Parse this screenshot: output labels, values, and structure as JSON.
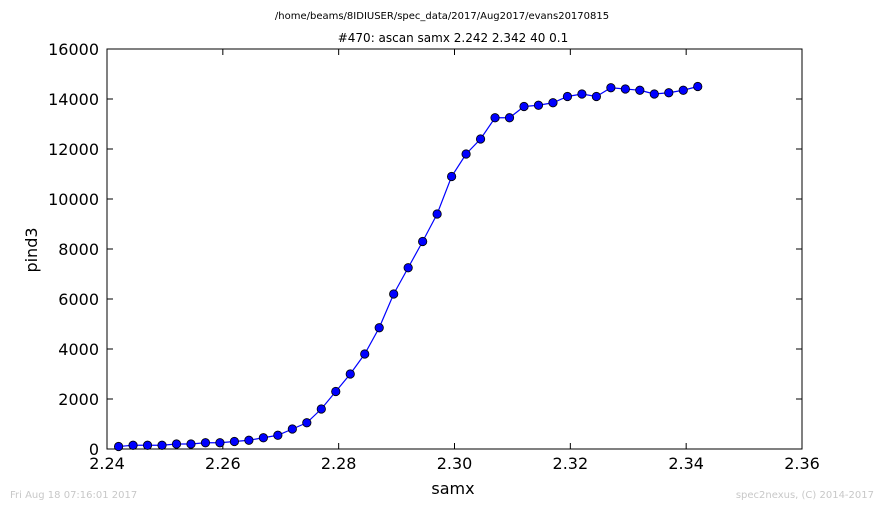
{
  "suptitle": "/home/beams/8IDIUSER/spec_data/2017/Aug2017/evans20170815",
  "footer_left": "Fri Aug 18 07:16:01 2017",
  "footer_right": "spec2nexus, (C) 2014-2017",
  "chart_data": {
    "type": "line",
    "title": "#470: ascan  samx 2.242 2.342  40 0.1",
    "xlabel": "samx",
    "ylabel": "pind3",
    "xlim": [
      2.24,
      2.36
    ],
    "ylim": [
      0,
      16000
    ],
    "xticks": [
      "2.24",
      "2.26",
      "2.28",
      "2.30",
      "2.32",
      "2.34",
      "2.36"
    ],
    "yticks": [
      "0",
      "2000",
      "4000",
      "6000",
      "8000",
      "10000",
      "12000",
      "14000",
      "16000"
    ],
    "grid": false,
    "line_color": "#0000ff",
    "marker": "circle",
    "series": [
      {
        "x": [
          2.242,
          2.2445,
          2.247,
          2.2495,
          2.252,
          2.2545,
          2.257,
          2.2595,
          2.262,
          2.2645,
          2.267,
          2.2695,
          2.272,
          2.2745,
          2.277,
          2.2795,
          2.282,
          2.2845,
          2.287,
          2.2895,
          2.292,
          2.2945,
          2.297,
          2.2995,
          2.302,
          2.3045,
          2.307,
          2.3095,
          2.312,
          2.3145,
          2.317,
          2.3195,
          2.322,
          2.3245,
          2.327,
          2.3295,
          2.332,
          2.3345,
          2.337,
          2.3395,
          2.342
        ],
        "y": [
          100,
          150,
          150,
          150,
          200,
          200,
          250,
          250,
          300,
          350,
          450,
          550,
          800,
          1050,
          1600,
          2300,
          3000,
          3800,
          4850,
          6200,
          7250,
          8300,
          9400,
          10900,
          11800,
          12400,
          13250,
          13250,
          13700,
          13750,
          13850,
          14100,
          14200,
          14100,
          14450,
          14400,
          14350,
          14200,
          14250,
          14350,
          14500
        ]
      }
    ]
  }
}
